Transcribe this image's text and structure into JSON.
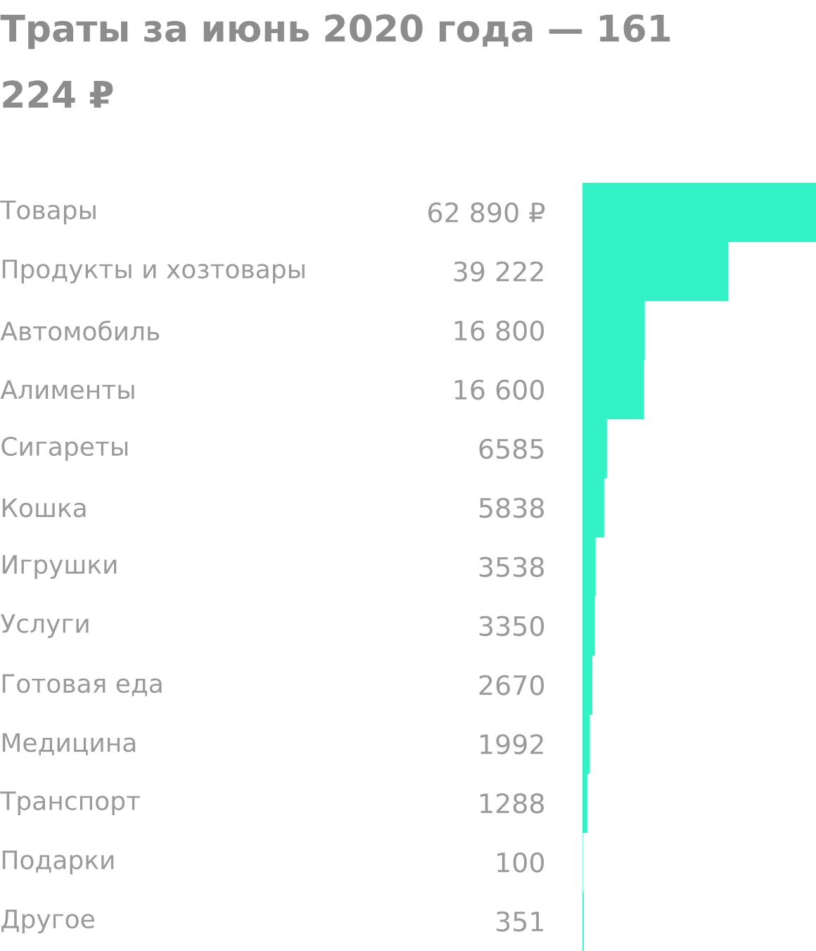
{
  "chart_data": {
    "type": "bar",
    "orientation": "horizontal",
    "title": "Траты за июнь 2020 года — 161 224 ₽",
    "categories": [
      "Товары",
      "Продукты и хозтовары",
      "Автомобиль",
      "Алименты",
      "Сигареты",
      "Кошка",
      "Игрушки",
      "Услуги",
      "Готовая еда",
      "Медицина",
      "Транспорт",
      "Подарки",
      "Другое"
    ],
    "values": [
      62890,
      39222,
      16800,
      16600,
      6585,
      5838,
      3538,
      3350,
      2670,
      1992,
      1288,
      100,
      351
    ],
    "value_labels": [
      "62 890 ₽",
      "39 222",
      "16 800",
      "16 600",
      "6585",
      "5838",
      "3538",
      "3350",
      "2670",
      "1992",
      "1288",
      "100",
      "351"
    ],
    "color": "#33f2c5"
  }
}
